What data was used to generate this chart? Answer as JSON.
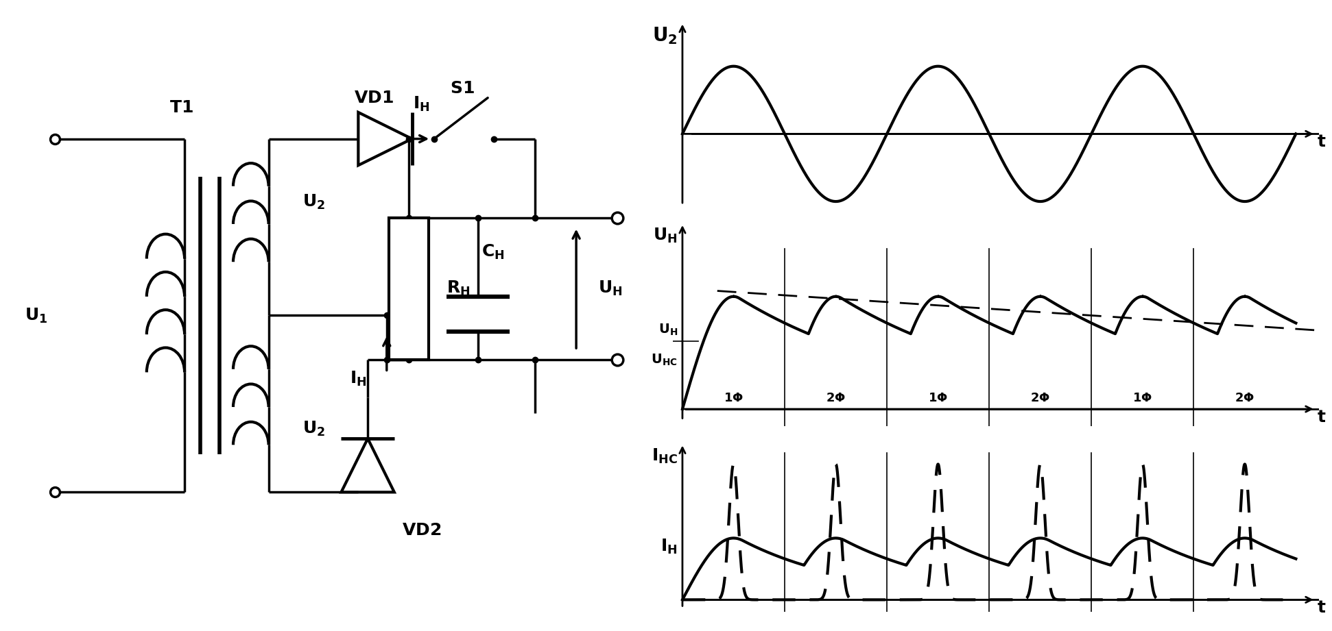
{
  "bg_color": "#ffffff",
  "line_color": "#000000",
  "fig_width": 19.42,
  "fig_height": 9.21,
  "lw_main": 2.5,
  "lw_thick": 3.5,
  "font_size": 15,
  "font_size_large": 18,
  "phase_labels": [
    "1Φ",
    "2Φ",
    "1Φ",
    "2Φ",
    "1Φ",
    "2Φ"
  ]
}
